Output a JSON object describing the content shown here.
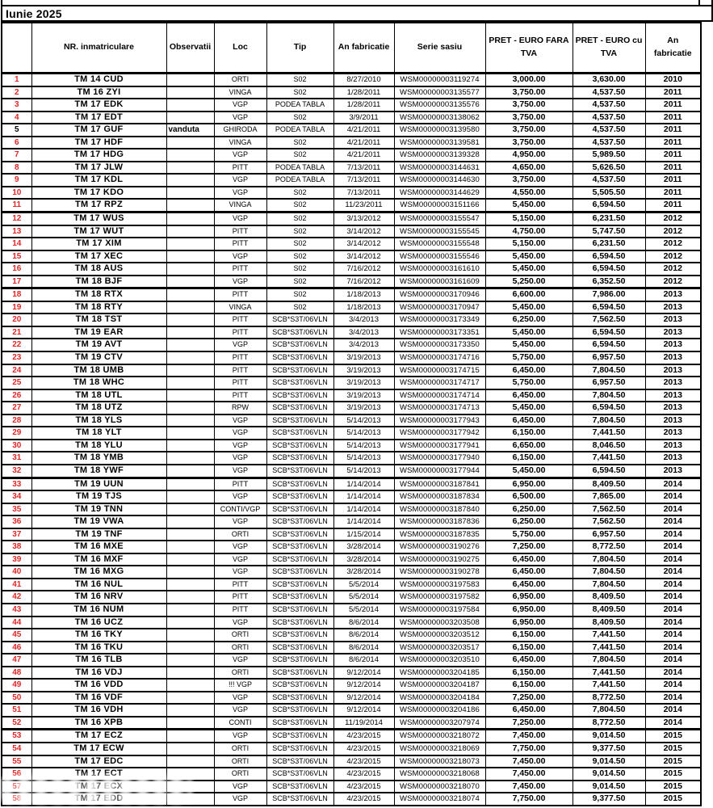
{
  "title": "Iunie 2025",
  "columns": [
    "",
    "NR. inmatriculare",
    "Observatii",
    "Loc",
    "Tip",
    "An fabricatie",
    "Serie sasiu",
    "PRET - EURO FARA TVA",
    "PRET - EURO cu TVA",
    "An fabricatie"
  ],
  "colors": {
    "row_number_red": "#e02525",
    "border": "#000000",
    "background": "#ffffff",
    "text": "#000000"
  },
  "black_number_rows": [
    5
  ],
  "thick_border_after_rows": [
    11,
    17,
    32,
    52
  ],
  "rows": [
    [
      1,
      "TM 14 CUD",
      "",
      "ORTI",
      "S02",
      "8/27/2010",
      "WSM00000003119274",
      "3,000.00",
      "3,630.00",
      "2010"
    ],
    [
      2,
      "TM 16 ZYI",
      "",
      "VINGA",
      "S02",
      "1/28/2011",
      "WSM00000003135577",
      "3,750.00",
      "4,537.50",
      "2011"
    ],
    [
      3,
      "TM 17 EDK",
      "",
      "VGP",
      "PODEA TABLA",
      "1/28/2011",
      "WSM00000003135576",
      "3,750.00",
      "4,537.50",
      "2011"
    ],
    [
      4,
      "TM 17 EDT",
      "",
      "VGP",
      "S02",
      "3/9/2011",
      "WSM00000003138062",
      "3,750.00",
      "4,537.50",
      "2011"
    ],
    [
      5,
      "TM 17 GUF",
      "vanduta",
      "GHIRODA",
      "PODEA TABLA",
      "4/21/2011",
      "WSM00000003139580",
      "3,750.00",
      "4,537.50",
      "2011"
    ],
    [
      6,
      "TM 17 HDF",
      "",
      "VINGA",
      "S02",
      "4/21/2011",
      "WSM00000003139581",
      "3,750.00",
      "4,537.50",
      "2011"
    ],
    [
      7,
      "TM 17 HDG",
      "",
      "VGP",
      "S02",
      "4/21/2011",
      "WSM00000003139328",
      "4,950.00",
      "5,989.50",
      "2011"
    ],
    [
      8,
      "TM 17 JLW",
      "",
      "PITT",
      "PODEA TABLA",
      "7/13/2011",
      "WSM00000003144631",
      "4,650.00",
      "5,626.50",
      "2011"
    ],
    [
      9,
      "TM 17 KDL",
      "",
      "VGP",
      "PODEA TABLA",
      "7/13/2011",
      "WSM00000003144630",
      "3,750.00",
      "4,537.50",
      "2011"
    ],
    [
      10,
      "TM 17 KDO",
      "",
      "VGP",
      "S02",
      "7/13/2011",
      "WSM00000003144629",
      "4,550.00",
      "5,505.50",
      "2011"
    ],
    [
      11,
      "TM 17 RPZ",
      "",
      "VINGA",
      "S02",
      "11/23/2011",
      "WSM00000003151166",
      "5,450.00",
      "6,594.50",
      "2011"
    ],
    [
      12,
      "TM 17 WUS",
      "",
      "VGP",
      "S02",
      "3/13/2012",
      "WSM00000003155547",
      "5,150.00",
      "6,231.50",
      "2012"
    ],
    [
      13,
      "TM 17 WUT",
      "",
      "PITT",
      "S02",
      "3/14/2012",
      "WSM00000003155545",
      "4,750.00",
      "5,747.50",
      "2012"
    ],
    [
      14,
      "TM 17 XIM",
      "",
      "PITT",
      "S02",
      "3/14/2012",
      "WSM00000003155548",
      "5,150.00",
      "6,231.50",
      "2012"
    ],
    [
      15,
      "TM 17 XEC",
      "",
      "VGP",
      "S02",
      "3/14/2012",
      "WSM00000003155546",
      "5,450.00",
      "6,594.50",
      "2012"
    ],
    [
      16,
      "TM 18 AUS",
      "",
      "PITT",
      "S02",
      "7/16/2012",
      "WSM00000003161610",
      "5,450.00",
      "6,594.50",
      "2012"
    ],
    [
      17,
      "TM 18 BJF",
      "",
      "VGP",
      "S02",
      "7/16/2012",
      "WSM00000003161609",
      "5,250.00",
      "6,352.50",
      "2012"
    ],
    [
      18,
      "TM 18 RTX",
      "",
      "PITT",
      "S02",
      "1/18/2013",
      "WSM00000003170946",
      "6,600.00",
      "7,986.00",
      "2013"
    ],
    [
      19,
      "TM 18 RTY",
      "",
      "VINGA",
      "S02",
      "1/18/2013",
      "WSM00000003170947",
      "5,450.00",
      "6,594.50",
      "2013"
    ],
    [
      20,
      "TM 18 TST",
      "",
      "PITT",
      "SCB*S3T/06VLN",
      "3/4/2013",
      "WSM00000003173349",
      "6,250.00",
      "7,562.50",
      "2013"
    ],
    [
      21,
      "TM 19 EAR",
      "",
      "PITT",
      "SCB*S3T/06VLN",
      "3/4/2013",
      "WSM00000003173351",
      "5,450.00",
      "6,594.50",
      "2013"
    ],
    [
      22,
      "TM 19 AVT",
      "",
      "VGP",
      "SCB*S3T/06VLN",
      "3/4/2013",
      "WSM00000003173350",
      "5,450.00",
      "6,594.50",
      "2013"
    ],
    [
      23,
      "TM 19 CTV",
      "",
      "PITT",
      "SCB*S3T/06VLN",
      "3/19/2013",
      "WSM00000003174716",
      "5,750.00",
      "6,957.50",
      "2013"
    ],
    [
      24,
      "TM 18 UMB",
      "",
      "PITT",
      "SCB*S3T/06VLN",
      "3/19/2013",
      "WSM00000003174715",
      "6,450.00",
      "7,804.50",
      "2013"
    ],
    [
      25,
      "TM 18 WHC",
      "",
      "PITT",
      "SCB*S3T/06VLN",
      "3/19/2013",
      "WSM00000003174717",
      "5,750.00",
      "6,957.50",
      "2013"
    ],
    [
      26,
      "TM 18 UTL",
      "",
      "PITT",
      "SCB*S3T/06VLN",
      "3/19/2013",
      "WSM00000003174714",
      "6,450.00",
      "7,804.50",
      "2013"
    ],
    [
      27,
      "TM 18 UTZ",
      "",
      "RPW",
      "SCB*S3T/06VLN",
      "3/19/2013",
      "WSM00000003174713",
      "5,450.00",
      "6,594.50",
      "2013"
    ],
    [
      28,
      "TM 18 YLS",
      "",
      "VGP",
      "SCB*S3T/06VLN",
      "5/14/2013",
      "WSM00000003177943",
      "6,450.00",
      "7,804.50",
      "2013"
    ],
    [
      29,
      "TM 18 YLT",
      "",
      "VGP",
      "SCB*S3T/06VLN",
      "5/14/2013",
      "WSM00000003177942",
      "6,150.00",
      "7,441.50",
      "2013"
    ],
    [
      30,
      "TM 18 YLU",
      "",
      "VGP",
      "SCB*S3T/06VLN",
      "5/14/2013",
      "WSM00000003177941",
      "6,650.00",
      "8,046.50",
      "2013"
    ],
    [
      31,
      "TM 18 YMB",
      "",
      "VGP",
      "SCB*S3T/06VLN",
      "5/14/2013",
      "WSM00000003177940",
      "6,150.00",
      "7,441.50",
      "2013"
    ],
    [
      32,
      "TM 18 YWF",
      "",
      "VGP",
      "SCB*S3T/06VLN",
      "5/14/2013",
      "WSM00000003177944",
      "5,450.00",
      "6,594.50",
      "2013"
    ],
    [
      33,
      "TM 19 UUN",
      "",
      "PITT",
      "SCB*S3T/06VLN",
      "1/14/2014",
      "WSM00000003187841",
      "6,950.00",
      "8,409.50",
      "2014"
    ],
    [
      34,
      "TM 19 TJS",
      "",
      "VGP",
      "SCB*S3T/06VLN",
      "1/14/2014",
      "WSM00000003187834",
      "6,500.00",
      "7,865.00",
      "2014"
    ],
    [
      35,
      "TM 19 TNN",
      "",
      "CONTI/VGP",
      "SCB*S3T/06VLN",
      "1/14/2014",
      "WSM00000003187840",
      "6,250.00",
      "7,562.50",
      "2014"
    ],
    [
      36,
      "TM 19 VWA",
      "",
      "VGP",
      "SCB*S3T/06VLN",
      "1/14/2014",
      "WSM00000003187836",
      "6,250.00",
      "7,562.50",
      "2014"
    ],
    [
      37,
      "TM 19 TNF",
      "",
      "ORTI",
      "SCB*S3T/06VLN",
      "1/15/2014",
      "WSM00000003187835",
      "5,750.00",
      "6,957.50",
      "2014"
    ],
    [
      38,
      "TM 16 MXE",
      "",
      "VGP",
      "SCB*S3T/06VLN",
      "3/28/2014",
      "WSM00000003190276",
      "7,250.00",
      "8,772.50",
      "2014"
    ],
    [
      39,
      "TM 16 MXF",
      "",
      "VGP",
      "SCB*S3T/06VLN",
      "3/28/2014",
      "WSM00000003190275",
      "6,450.00",
      "7,804.50",
      "2014"
    ],
    [
      40,
      "TM 16 MXG",
      "",
      "VGP",
      "SCB*S3T/06VLN",
      "3/28/2014",
      "WSM00000003190278",
      "6,450.00",
      "7,804.50",
      "2014"
    ],
    [
      41,
      "TM 16 NUL",
      "",
      "PITT",
      "SCB*S3T/06VLN",
      "5/5/2014",
      "WSM00000003197583",
      "6,450.00",
      "7,804.50",
      "2014"
    ],
    [
      42,
      "TM 16 NRV",
      "",
      "PITT",
      "SCB*S3T/06VLN",
      "5/5/2014",
      "WSM00000003197582",
      "6,950.00",
      "8,409.50",
      "2014"
    ],
    [
      43,
      "TM 16 NUM",
      "",
      "PITT",
      "SCB*S3T/06VLN",
      "5/5/2014",
      "WSM00000003197584",
      "6,950.00",
      "8,409.50",
      "2014"
    ],
    [
      44,
      "TM 16 UCZ",
      "",
      "VGP",
      "SCB*S3T/06VLN",
      "8/6/2014",
      "WSM00000003203508",
      "6,950.00",
      "8,409.50",
      "2014"
    ],
    [
      45,
      "TM 16 TKY",
      "",
      "ORTI",
      "SCB*S3T/06VLN",
      "8/6/2014",
      "WSM00000003203512",
      "6,150.00",
      "7,441.50",
      "2014"
    ],
    [
      46,
      "TM 16 TKU",
      "",
      "ORTI",
      "SCB*S3T/06VLN",
      "8/6/2014",
      "WSM00000003203517",
      "6,150.00",
      "7,441.50",
      "2014"
    ],
    [
      47,
      "TM 16 TLB",
      "",
      "VGP",
      "SCB*S3T/06VLN",
      "8/6/2014",
      "WSM00000003203510",
      "6,450.00",
      "7,804.50",
      "2014"
    ],
    [
      48,
      "TM 16 VDJ",
      "",
      "ORTI",
      "SCB*S3T/06VLN",
      "9/12/2014",
      "WSM00000003204185",
      "6,150.00",
      "7,441.50",
      "2014"
    ],
    [
      49,
      "TM 16 VDD",
      "",
      "!!! VGP",
      "SCB*S3T/06VLN",
      "9/12/2014",
      "WSM00000003204187",
      "6,150.00",
      "7,441.50",
      "2014"
    ],
    [
      50,
      "TM 16 VDF",
      "",
      "VGP",
      "SCB*S3T/06VLN",
      "9/12/2014",
      "WSM00000003204184",
      "7,250.00",
      "8,772.50",
      "2014"
    ],
    [
      51,
      "TM 16 VDH",
      "",
      "VGP",
      "SCB*S3T/06VLN",
      "9/12/2014",
      "WSM00000003204186",
      "6,450.00",
      "7,804.50",
      "2014"
    ],
    [
      52,
      "TM 16 XPB",
      "",
      "CONTI",
      "SCB*S3T/06VLN",
      "11/19/2014",
      "WSM00000003207974",
      "7,250.00",
      "8,772.50",
      "2014"
    ],
    [
      53,
      "TM 17 ECZ",
      "",
      "VGP",
      "SCB*S3T/06VLN",
      "4/23/2015",
      "WSM00000003218072",
      "7,450.00",
      "9,014.50",
      "2015"
    ],
    [
      54,
      "TM 17 ECW",
      "",
      "ORTI",
      "SCB*S3T/06VLN",
      "4/23/2015",
      "WSM00000003218069",
      "7,750.00",
      "9,377.50",
      "2015"
    ],
    [
      55,
      "TM 17 EDC",
      "",
      "ORTI",
      "SCB*S3T/06VLN",
      "4/23/2015",
      "WSM00000003218073",
      "7,450.00",
      "9,014.50",
      "2015"
    ],
    [
      56,
      "TM 17 ECT",
      "",
      "ORTI",
      "SCB*S3T/06VLN",
      "4/23/2015",
      "WSM00000003218068",
      "7,450.00",
      "9,014.50",
      "2015"
    ],
    [
      57,
      "TM 17 ECX",
      "",
      "VGP",
      "SCB*S3T/06VLN",
      "4/23/2015",
      "WSM00000003218070",
      "7,450.00",
      "9,014.50",
      "2015"
    ],
    [
      58,
      "TM 17 EDD",
      "",
      "VGP",
      "SCB*S3T/06VLN",
      "4/23/2015",
      "WSM00000003218074",
      "7,750.00",
      "9,377.50",
      "2015"
    ]
  ]
}
